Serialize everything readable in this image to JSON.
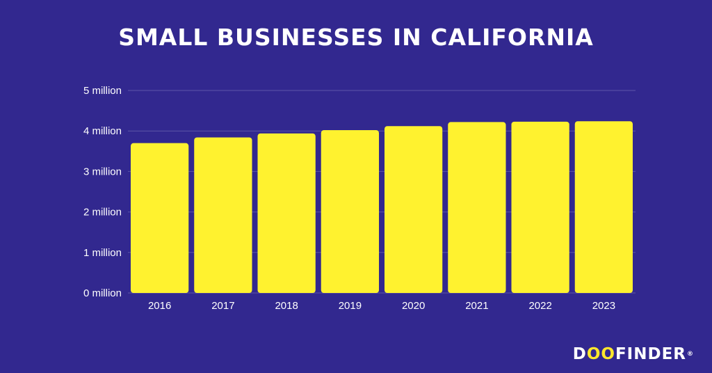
{
  "chart_data": {
    "type": "bar",
    "title": "SMALL BUSINESSES IN CALIFORNIA",
    "categories": [
      "2016",
      "2017",
      "2018",
      "2019",
      "2020",
      "2021",
      "2022",
      "2023"
    ],
    "values": [
      3.7,
      3.84,
      3.94,
      4.02,
      4.12,
      4.22,
      4.23,
      4.24
    ],
    "unit": "million",
    "ylim": [
      0,
      5
    ],
    "yticks": [
      0,
      1,
      2,
      3,
      4,
      5
    ],
    "ytick_labels": [
      "0 million",
      "1 million",
      "2 million",
      "3 million",
      "4 million",
      "5 million"
    ],
    "xlabel": "",
    "ylabel": "",
    "grid": true,
    "bar_color": "#fff22f",
    "gridline_color": "#5d56a8"
  },
  "logo": {
    "text": "DOOFINDER",
    "prefix": "D",
    "oo": "OO",
    "suffix": "FINDER",
    "reg": "®"
  },
  "colors": {
    "background": "#32288f",
    "accent": "#fff22f"
  }
}
